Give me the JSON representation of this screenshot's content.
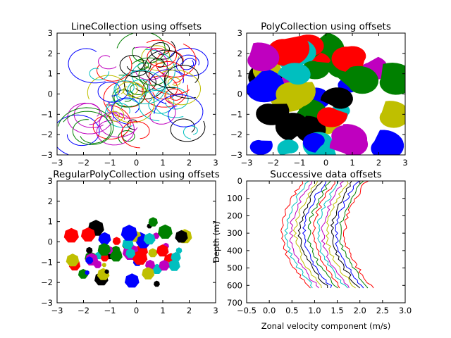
{
  "colors": [
    "#0000ff",
    "#008000",
    "#ff0000",
    "#00bfbf",
    "#bf00bf",
    "#bfbf00",
    "#000000"
  ],
  "charts": [
    {
      "key": "tl",
      "title": "LineCollection using offsets",
      "type": "line-collection",
      "xlim": [
        -3,
        3
      ],
      "ylim": [
        -3,
        3
      ],
      "xticks": [
        -3,
        -2,
        -1,
        0,
        1,
        2,
        3
      ],
      "yticks": [
        -3,
        -2,
        -1,
        0,
        1,
        2,
        3
      ],
      "xlabel": "",
      "ylabel": "",
      "n_items": 60
    },
    {
      "key": "tr",
      "title": "PolyCollection using offsets",
      "type": "poly-collection",
      "xlim": [
        -3,
        3
      ],
      "ylim": [
        -3,
        3
      ],
      "xticks": [
        -3,
        -2,
        -1,
        0,
        1,
        2,
        3
      ],
      "yticks": [
        -3,
        -2,
        -1,
        0,
        1,
        2,
        3
      ],
      "xlabel": "",
      "ylabel": "",
      "n_items": 40
    },
    {
      "key": "bl",
      "title": "RegularPolyCollection using offsets",
      "type": "regular-poly-collection",
      "xlim": [
        -3,
        3
      ],
      "ylim": [
        -3,
        3
      ],
      "xticks": [
        -3,
        -2,
        -1,
        0,
        1,
        2,
        3
      ],
      "yticks": [
        -3,
        -2,
        -1,
        0,
        1,
        2,
        3
      ],
      "xlabel": "",
      "ylabel": "",
      "n_items": 60
    },
    {
      "key": "br",
      "title": "Successive data offsets",
      "type": "line",
      "xlim": [
        -0.5,
        3.0
      ],
      "ylim": [
        700,
        0
      ],
      "xticks": [
        -0.5,
        0.0,
        0.5,
        1.0,
        1.5,
        2.0,
        2.5,
        3.0
      ],
      "xtick_labels": [
        "−0.5",
        "0.0",
        "0.5",
        "1.0",
        "1.5",
        "2.0",
        "2.5",
        "3.0"
      ],
      "yticks": [
        0,
        100,
        200,
        300,
        400,
        500,
        600,
        700
      ],
      "xlabel": "Zonal velocity component (m/s)",
      "ylabel": "Depth (m)",
      "n_series": 15,
      "series_offset": 0.1
    }
  ]
}
